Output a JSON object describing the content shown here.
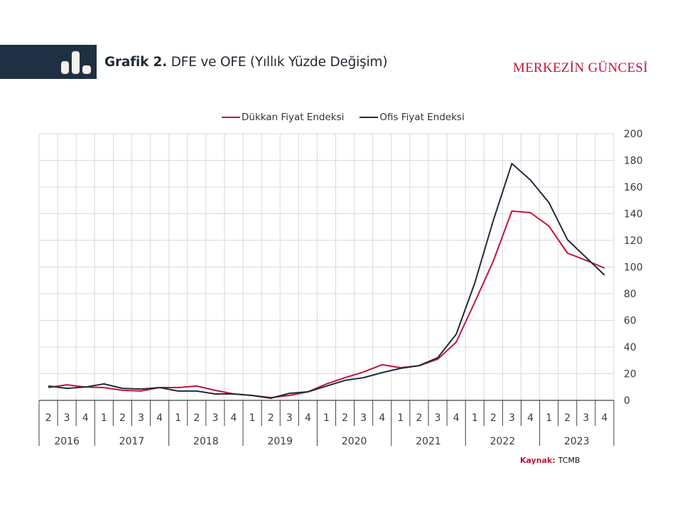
{
  "header": {
    "title_bold": "Grafik 2.",
    "title_rest": " DFE ve OFE (Yıllık Yüzde Değişim)",
    "brand": "MERKEZİN GÜNCESİ",
    "icon": "bar-chart-icon"
  },
  "source": {
    "label": "Kaynak:",
    "value": "TCMB"
  },
  "colors": {
    "header_band": "#1f3044",
    "dfe": "#c0143c",
    "ofe": "#1f2d3d",
    "brand": "#c0143c",
    "grid": "#d9d9d9"
  },
  "chart_data": {
    "type": "line",
    "title": "Grafik 2. DFE ve OFE (Yıllık Yüzde Değişim)",
    "xlabel": "",
    "ylabel": "",
    "ylim": [
      0,
      200
    ],
    "yticks": [
      0,
      20,
      40,
      60,
      80,
      100,
      120,
      140,
      160,
      180,
      200
    ],
    "y_axis_side": "right",
    "grid": true,
    "legend_position": "top-center",
    "x_quarters": [
      "2",
      "3",
      "4",
      "1",
      "2",
      "3",
      "4",
      "1",
      "2",
      "3",
      "4",
      "1",
      "2",
      "3",
      "4",
      "1",
      "2",
      "3",
      "4",
      "1",
      "2",
      "3",
      "4",
      "1",
      "2",
      "3",
      "4",
      "1",
      "2",
      "3",
      "4"
    ],
    "x_years": [
      {
        "label": "2016",
        "quarters": 3
      },
      {
        "label": "2017",
        "quarters": 4
      },
      {
        "label": "2018",
        "quarters": 4
      },
      {
        "label": "2019",
        "quarters": 4
      },
      {
        "label": "2020",
        "quarters": 4
      },
      {
        "label": "2021",
        "quarters": 4
      },
      {
        "label": "2022",
        "quarters": 4
      },
      {
        "label": "2023",
        "quarters": 4
      }
    ],
    "x": [
      "2016Q2",
      "2016Q3",
      "2016Q4",
      "2017Q1",
      "2017Q2",
      "2017Q3",
      "2017Q4",
      "2018Q1",
      "2018Q2",
      "2018Q3",
      "2018Q4",
      "2019Q1",
      "2019Q2",
      "2019Q3",
      "2019Q4",
      "2020Q1",
      "2020Q2",
      "2020Q3",
      "2020Q4",
      "2021Q1",
      "2021Q2",
      "2021Q3",
      "2021Q4",
      "2022Q1",
      "2022Q2",
      "2022Q3",
      "2022Q4",
      "2023Q1",
      "2023Q2",
      "2023Q3",
      "2023Q4"
    ],
    "series": [
      {
        "name": "Dükkan Fiyat Endeksi",
        "color": "#c0143c",
        "values": [
          9.6,
          11.7,
          10.0,
          9.6,
          7.5,
          7.0,
          9.6,
          9.6,
          10.7,
          7.5,
          4.8,
          3.7,
          2.1,
          3.7,
          6.4,
          12.3,
          17.0,
          21.3,
          26.7,
          24.5,
          26.0,
          30.9,
          43.7,
          73.6,
          104.5,
          141.9,
          140.8,
          130.7,
          110.4,
          105.0,
          99.2
        ]
      },
      {
        "name": "Ofis Fiyat Endeksi",
        "color": "#1f2d3d",
        "values": [
          10.7,
          9.0,
          10.0,
          12.3,
          9.0,
          8.5,
          9.6,
          7.0,
          7.0,
          4.8,
          4.8,
          3.7,
          1.6,
          5.3,
          6.4,
          10.7,
          15.0,
          17.0,
          20.8,
          24.0,
          26.1,
          32.0,
          49.6,
          88.0,
          135.0,
          177.6,
          165.3,
          148.3,
          120.5,
          107.2,
          93.9
        ]
      }
    ]
  }
}
